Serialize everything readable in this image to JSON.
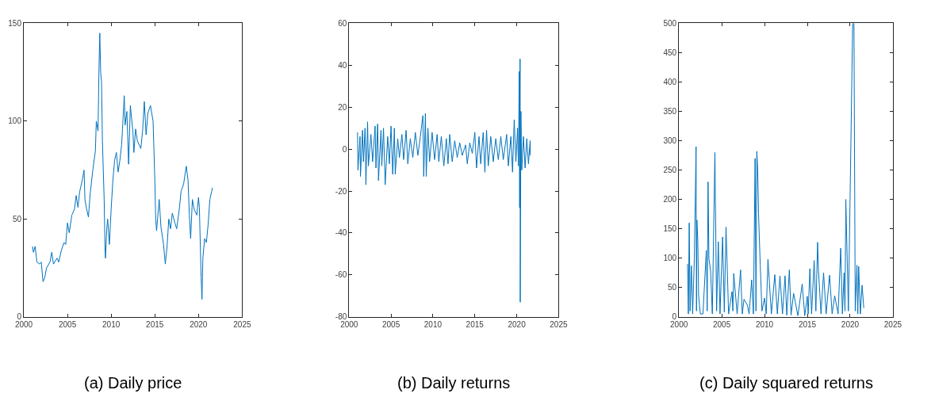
{
  "chart_data": [
    {
      "type": "line",
      "title": "(a) Daily price",
      "color": "#0072bd",
      "xlim": [
        2000,
        2025
      ],
      "xticks": [
        2000,
        2005,
        2010,
        2015,
        2020,
        2025
      ],
      "ylim": [
        0,
        150
      ],
      "yticks": [
        0,
        50,
        100,
        150
      ],
      "x": [
        2001.0,
        2001.1,
        2001.3,
        2001.5,
        2001.8,
        2002.0,
        2002.2,
        2002.4,
        2002.6,
        2003.0,
        2003.2,
        2003.4,
        2003.8,
        2004.0,
        2004.3,
        2004.6,
        2004.8,
        2005.0,
        2005.2,
        2005.5,
        2005.8,
        2006.0,
        2006.2,
        2006.4,
        2006.7,
        2006.9,
        2007.0,
        2007.2,
        2007.4,
        2007.6,
        2007.9,
        2008.2,
        2008.3,
        2008.5,
        2008.6,
        2008.7,
        2008.8,
        2008.9,
        2009.0,
        2009.2,
        2009.3,
        2009.35,
        2009.5,
        2009.6,
        2009.8,
        2010.0,
        2010.2,
        2010.4,
        2010.6,
        2010.8,
        2011.0,
        2011.2,
        2011.3,
        2011.5,
        2011.6,
        2011.8,
        2012.0,
        2012.2,
        2012.5,
        2012.6,
        2012.8,
        2013.0,
        2013.4,
        2013.6,
        2013.8,
        2014.0,
        2014.2,
        2014.5,
        2014.8,
        2015.0,
        2015.1,
        2015.2,
        2015.5,
        2015.7,
        2016.0,
        2016.2,
        2016.4,
        2016.6,
        2016.8,
        2017.0,
        2017.3,
        2017.5,
        2017.8,
        2018.0,
        2018.3,
        2018.6,
        2018.8,
        2018.95,
        2019.1,
        2019.3,
        2019.5,
        2019.8,
        2020.0,
        2020.1,
        2020.3,
        2020.4,
        2020.5,
        2020.7,
        2020.9,
        2021.1,
        2021.3,
        2021.5,
        2021.6
      ],
      "values": [
        36,
        33,
        36,
        28,
        27,
        28,
        18,
        20,
        25,
        28,
        33,
        27,
        30,
        28,
        34,
        38,
        37,
        48,
        43,
        52,
        55,
        62,
        56,
        64,
        70,
        75,
        60,
        55,
        51,
        63,
        75,
        85,
        100,
        95,
        125,
        145,
        125,
        120,
        90,
        60,
        34,
        30,
        45,
        50,
        37,
        55,
        70,
        80,
        84,
        74,
        80,
        88,
        96,
        113,
        98,
        105,
        78,
        108,
        94,
        84,
        96,
        90,
        86,
        95,
        110,
        93,
        104,
        108,
        100,
        70,
        50,
        44,
        60,
        46,
        37,
        27,
        36,
        50,
        45,
        53,
        48,
        45,
        55,
        64,
        68,
        77,
        70,
        52,
        40,
        60,
        55,
        52,
        61,
        56,
        20,
        9,
        30,
        40,
        38,
        47,
        60,
        64,
        66
      ]
    },
    {
      "type": "line",
      "title": "(b) Daily returns",
      "color": "#0072bd",
      "xlim": [
        2000,
        2025
      ],
      "xticks": [
        2000,
        2005,
        2010,
        2015,
        2020,
        2025
      ],
      "ylim": [
        -80,
        60
      ],
      "yticks": [
        -80,
        -60,
        -40,
        -20,
        0,
        20,
        40,
        60
      ],
      "x": [
        2001.0,
        2001.05,
        2001.3,
        2001.35,
        2001.6,
        2001.7,
        2001.9,
        2002.0,
        2002.2,
        2002.3,
        2002.6,
        2002.8,
        2003.1,
        2003.2,
        2003.4,
        2003.5,
        2003.8,
        2003.9,
        2004.1,
        2004.3,
        2004.6,
        2004.8,
        2005.0,
        2005.2,
        2005.4,
        2005.5,
        2005.8,
        2006.0,
        2006.3,
        2006.5,
        2006.8,
        2007.0,
        2007.3,
        2007.6,
        2007.9,
        2008.2,
        2008.5,
        2008.8,
        2008.9,
        2009.1,
        2009.2,
        2009.4,
        2009.6,
        2009.9,
        2010.2,
        2010.5,
        2010.7,
        2011.0,
        2011.3,
        2011.6,
        2011.8,
        2012.0,
        2012.3,
        2012.6,
        2012.9,
        2013.2,
        2013.5,
        2013.9,
        2014.1,
        2014.4,
        2014.7,
        2015.0,
        2015.2,
        2015.5,
        2015.7,
        2016.0,
        2016.2,
        2016.4,
        2016.6,
        2016.9,
        2017.2,
        2017.5,
        2017.8,
        2018.1,
        2018.4,
        2018.8,
        2019.0,
        2019.3,
        2019.5,
        2019.7,
        2019.9,
        2020.1,
        2020.2,
        2020.3,
        2020.35,
        2020.4,
        2020.42,
        2020.5,
        2020.6,
        2020.8,
        2021.0,
        2021.2,
        2021.4,
        2021.6,
        2021.62
      ],
      "values": [
        8,
        -10,
        6,
        -13,
        9,
        -6,
        10,
        -17,
        13,
        -8,
        7,
        -6,
        11,
        -9,
        12,
        -15,
        9,
        -8,
        10,
        -17,
        6,
        -7,
        11,
        -12,
        10,
        -12,
        5,
        -4,
        7,
        -5,
        9,
        -7,
        5,
        -4,
        8,
        -3,
        6,
        16,
        -13,
        17,
        -13,
        10,
        -6,
        8,
        -5,
        7,
        -6,
        6,
        -8,
        5,
        -7,
        7,
        -6,
        4,
        -4,
        3,
        -3,
        2,
        -7,
        3,
        -2,
        8,
        -9,
        6,
        -7,
        8,
        -11,
        9,
        -8,
        6,
        -6,
        5,
        -5,
        6,
        -5,
        7,
        -8,
        6,
        -11,
        14,
        -6,
        10,
        -8,
        37,
        -28,
        43,
        -73,
        18,
        -10,
        6,
        -9,
        5,
        -7,
        4,
        -3
      ]
    },
    {
      "type": "line",
      "title": "(c) Daily squared returns",
      "color": "#0072bd",
      "xlim": [
        2000,
        2025
      ],
      "xticks": [
        2000,
        2005,
        2010,
        2015,
        2020,
        2025
      ],
      "ylim": [
        0,
        500
      ],
      "yticks": [
        0,
        50,
        100,
        150,
        200,
        250,
        300,
        350,
        400,
        450,
        500
      ],
      "x": [
        2001.0,
        2001.1,
        2001.2,
        2001.3,
        2001.45,
        2001.6,
        2001.8,
        2002.0,
        2002.05,
        2002.1,
        2002.2,
        2002.3,
        2002.5,
        2002.8,
        2003.2,
        2003.3,
        2003.4,
        2003.5,
        2003.7,
        2003.9,
        2004.2,
        2004.4,
        2004.6,
        2004.8,
        2005.1,
        2005.3,
        2005.5,
        2005.8,
        2006.2,
        2006.3,
        2006.4,
        2006.8,
        2007.2,
        2007.4,
        2007.6,
        2008.0,
        2008.2,
        2008.5,
        2008.7,
        2008.9,
        2009.0,
        2009.1,
        2009.2,
        2009.3,
        2009.5,
        2009.7,
        2010.0,
        2010.2,
        2010.4,
        2010.8,
        2011.2,
        2011.5,
        2011.8,
        2012.1,
        2012.4,
        2012.6,
        2012.9,
        2013.1,
        2013.4,
        2013.9,
        2014.4,
        2014.7,
        2015.0,
        2015.1,
        2015.3,
        2015.5,
        2015.8,
        2016.0,
        2016.2,
        2016.3,
        2016.6,
        2016.9,
        2017.2,
        2017.6,
        2017.9,
        2018.2,
        2018.6,
        2018.9,
        2019.1,
        2019.3,
        2019.4,
        2019.5,
        2019.8,
        2020.3,
        2020.45,
        2020.6,
        2020.8,
        2020.9,
        2021.0,
        2021.2,
        2021.4,
        2021.6
      ],
      "values": [
        90,
        5,
        160,
        10,
        87,
        5,
        100,
        290,
        10,
        165,
        130,
        35,
        5,
        5,
        113,
        10,
        230,
        100,
        78,
        5,
        280,
        10,
        128,
        5,
        136,
        8,
        153,
        5,
        43,
        10,
        74,
        5,
        80,
        5,
        30,
        20,
        5,
        63,
        5,
        270,
        10,
        282,
        252,
        176,
        88,
        10,
        32,
        5,
        98,
        5,
        72,
        5,
        70,
        5,
        70,
        3,
        80,
        3,
        40,
        2,
        56,
        2,
        35,
        5,
        82,
        5,
        96,
        10,
        127,
        80,
        5,
        75,
        5,
        71,
        5,
        36,
        5,
        117,
        5,
        75,
        10,
        200,
        10,
        500,
        500,
        10,
        88,
        5,
        86,
        5,
        54,
        15
      ]
    }
  ]
}
